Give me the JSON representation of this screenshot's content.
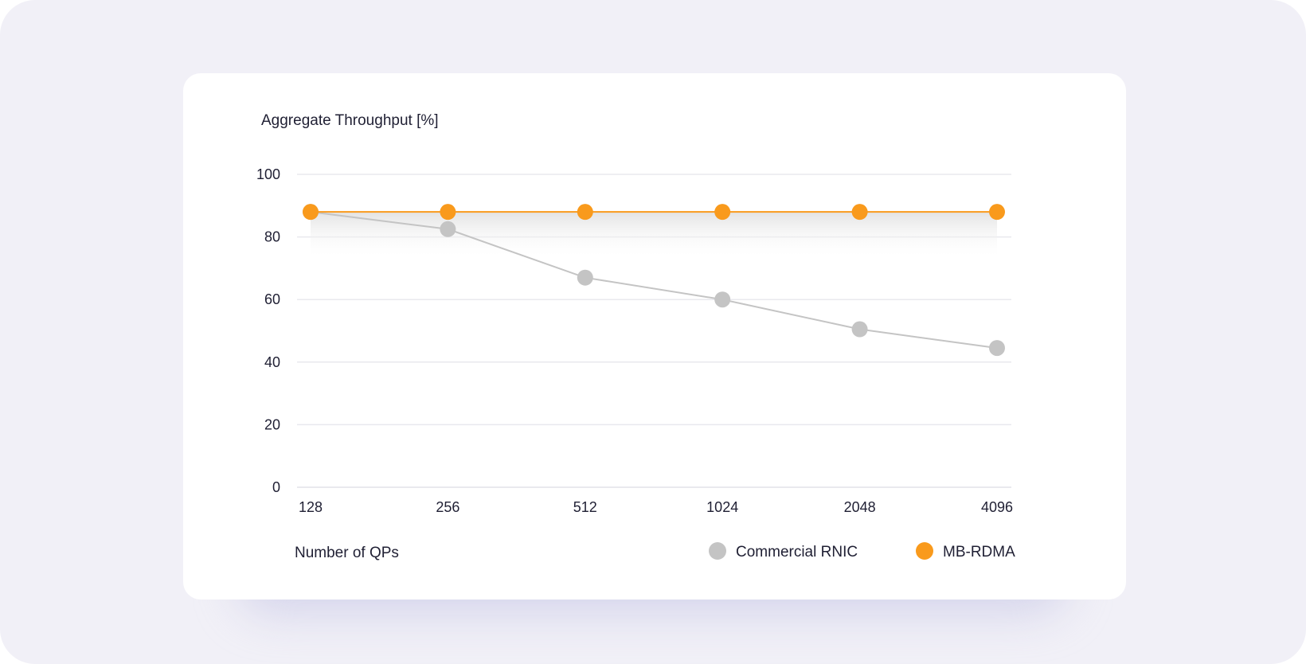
{
  "colors": {
    "background": "#f1f0f7",
    "card": "#ffffff",
    "grid": "#e9e9ee",
    "commercial": "#c4c4c4",
    "mb_rdma": "#f99a1c",
    "text": "#1f1f33"
  },
  "chart_data": {
    "type": "line",
    "title": "",
    "ylabel": "Aggregate Throughput [%]",
    "xlabel": "Number of QPs",
    "categories": [
      "128",
      "256",
      "512",
      "1024",
      "2048",
      "4096"
    ],
    "yticks": [
      "0",
      "20",
      "40",
      "60",
      "80",
      "100"
    ],
    "ylim": [
      0,
      100
    ],
    "grid": true,
    "legend_position": "bottom-right",
    "series": [
      {
        "name": "Commercial RNIC",
        "color": "#c4c4c4",
        "values": [
          88,
          82.5,
          67,
          60,
          50.5,
          44.5
        ]
      },
      {
        "name": "MB-RDMA",
        "color": "#f99a1c",
        "values": [
          88,
          88,
          88,
          88,
          88,
          88
        ]
      }
    ]
  }
}
